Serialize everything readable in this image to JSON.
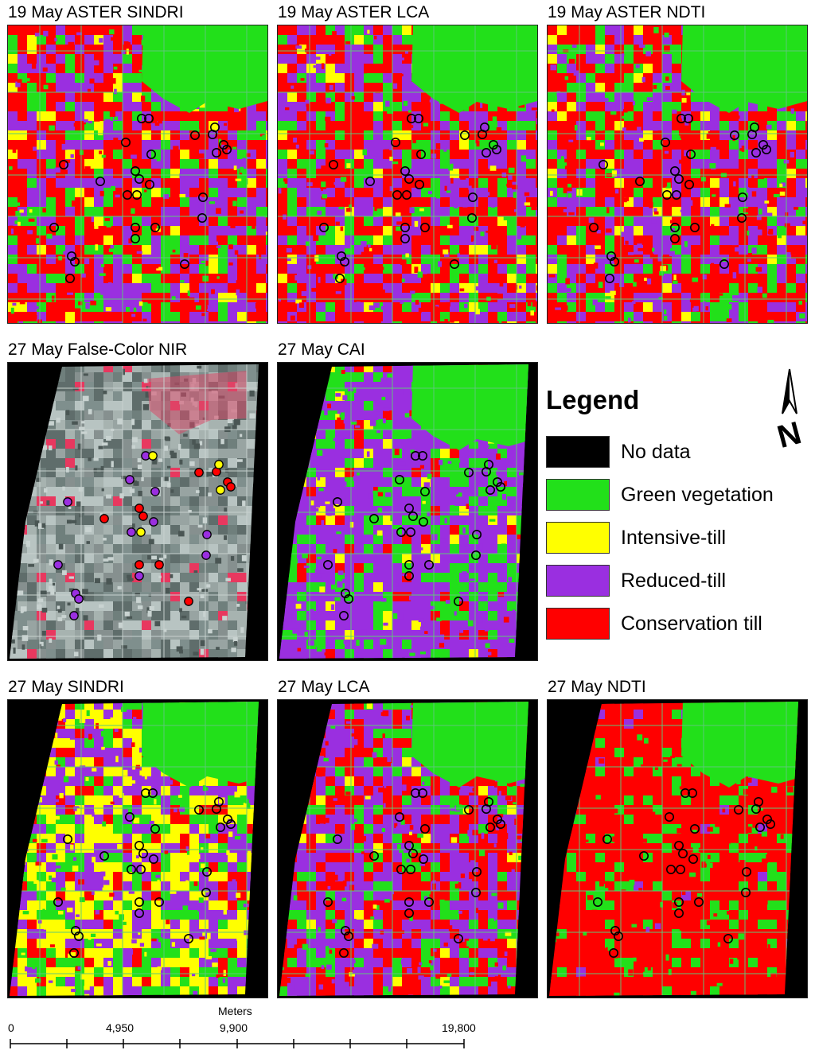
{
  "panels": [
    {
      "title": "19 May ASTER SINDRI",
      "scheme": "aster",
      "points": "outline"
    },
    {
      "title": "19 May ASTER LCA",
      "scheme": "aster",
      "points": "outline"
    },
    {
      "title": "19 May ASTER NDTI",
      "scheme": "aster",
      "points": "outline"
    },
    {
      "title": "27 May False-Color NIR",
      "scheme": "nir",
      "points": "filled"
    },
    {
      "title": "27 May CAI",
      "scheme": "cai",
      "points": "outline"
    },
    {
      "title": "27 May SINDRI",
      "scheme": "sindri",
      "points": "outline"
    },
    {
      "title": "27 May LCA",
      "scheme": "lca",
      "points": "outline"
    },
    {
      "title": "27 May NDTI",
      "scheme": "ndti",
      "points": "outline"
    }
  ],
  "legend": {
    "title": "Legend",
    "items": [
      {
        "label": "No data",
        "color": "#000000"
      },
      {
        "label": "Green vegetation",
        "color": "#22e01a"
      },
      {
        "label": "Intensive-till",
        "color": "#ffff00"
      },
      {
        "label": "Reduced-till",
        "color": "#9a2fe0"
      },
      {
        "label": "Conservation till",
        "color": "#ff0000"
      }
    ]
  },
  "north_arrow": "N",
  "scale_bar": {
    "unit": "Meters",
    "labels": [
      "0",
      "4,950",
      "9,900",
      "19,800"
    ]
  }
}
